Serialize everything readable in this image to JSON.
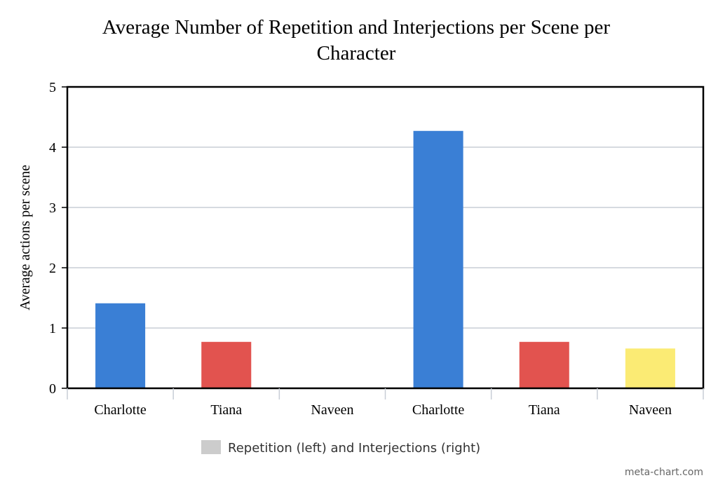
{
  "chart_data": {
    "type": "bar",
    "title_lines": [
      "Average Number of Repetition and Interjections per Scene per",
      "Character"
    ],
    "xlabel": "",
    "ylabel": "Average actions per scene",
    "ylim": [
      0,
      5
    ],
    "yticks": [
      "0",
      "1",
      "2",
      "3",
      "4",
      "5"
    ],
    "categories": [
      "Charlotte",
      "Tiana",
      "Naveen",
      "Charlotte",
      "Tiana",
      "Naveen"
    ],
    "values": [
      1.41,
      0.77,
      0,
      4.27,
      0.77,
      0.66
    ],
    "colors": [
      "#3a7fd5",
      "#e2534f",
      "#e2534f",
      "#3a7fd5",
      "#e2534f",
      "#fbeb74"
    ],
    "grid": true,
    "legend_position": "bottom",
    "legend": {
      "label": "Repetition (left) and Interjections (right)",
      "color": "#cccccc"
    }
  },
  "credit": "meta-chart.com"
}
